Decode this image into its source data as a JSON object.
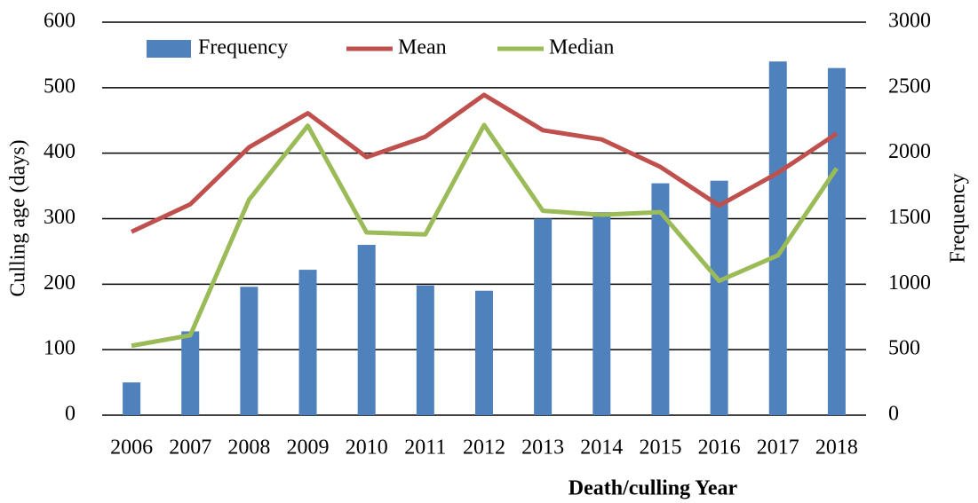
{
  "chart_data": {
    "type": "bar",
    "x_label": "Death/culling Year",
    "y_label": "Culling age (days)",
    "y2_label": "Frequency",
    "categories": [
      "2006",
      "2007",
      "2008",
      "2009",
      "2010",
      "2011",
      "2012",
      "2013",
      "2014",
      "2015",
      "2016",
      "2017",
      "2018"
    ],
    "series": [
      {
        "name": "Frequency",
        "type": "bar",
        "axis": "y2",
        "color": "#4f81bd",
        "values": [
          250,
          640,
          980,
          1110,
          1300,
          990,
          950,
          1500,
          1550,
          1770,
          1790,
          2700,
          2650
        ]
      },
      {
        "name": "Mean",
        "type": "line",
        "color": "#c0504d",
        "values": [
          280,
          322,
          409,
          461,
          394,
          425,
          489,
          435,
          421,
          379,
          320,
          370,
          430
        ]
      },
      {
        "name": "Median",
        "type": "line",
        "color": "#9bbb59",
        "values": [
          106,
          122,
          329,
          442,
          279,
          276,
          443,
          312,
          306,
          310,
          205,
          244,
          377
        ]
      }
    ],
    "ylim": [
      0,
      600
    ],
    "yticks": [
      0,
      100,
      200,
      300,
      400,
      500,
      600
    ],
    "y2lim": [
      0,
      3000
    ],
    "y2ticks": [
      0,
      500,
      1000,
      1500,
      2000,
      2500,
      3000
    ],
    "grid": true,
    "legend": "top"
  }
}
